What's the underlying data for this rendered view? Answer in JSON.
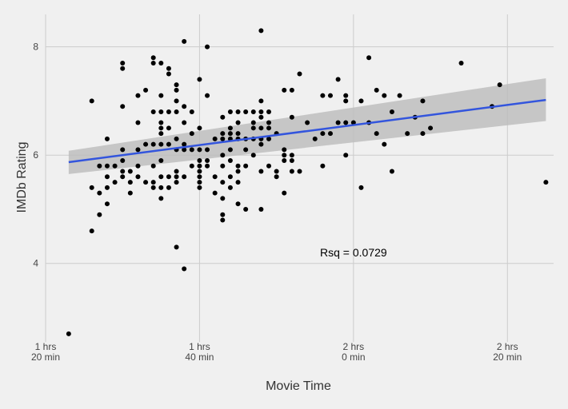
{
  "chart_data": {
    "type": "scatter",
    "title": "",
    "xlabel": "Movie Time",
    "ylabel": "IMDb Rating",
    "xlim": [
      80,
      146
    ],
    "ylim": [
      2.55,
      8.6
    ],
    "grid": true,
    "x_ticks": [
      {
        "value": 80,
        "line1": "1 hrs",
        "line2": "20 min"
      },
      {
        "value": 100,
        "line1": "1 hrs",
        "line2": "40 min"
      },
      {
        "value": 120,
        "line1": "2 hrs",
        "line2": "0 min"
      },
      {
        "value": 140,
        "line1": "2 hrs",
        "line2": "20 min"
      }
    ],
    "y_ticks": [
      {
        "value": 4,
        "label": "4"
      },
      {
        "value": 6,
        "label": "6"
      },
      {
        "value": 8,
        "label": "8"
      }
    ],
    "trend": {
      "x_start": 83,
      "x_end": 145,
      "y_start": 5.87,
      "y_end": 7.02
    },
    "confidence_band": {
      "upper_start": 6.08,
      "upper_end": 7.42,
      "lower_start": 5.65,
      "lower_end": 6.63
    },
    "annotation": {
      "text": "Rsq = 0.0729",
      "x": 120,
      "y": 4.2
    },
    "colors": {
      "point": "#000000",
      "trend": "#3355dd",
      "band": "#bbbbbb",
      "grid": "#cccccc",
      "background": "#f0f0f0"
    },
    "points": [
      [
        83,
        2.7
      ],
      [
        86,
        4.6
      ],
      [
        86,
        7.0
      ],
      [
        86,
        5.4
      ],
      [
        87,
        5.8
      ],
      [
        87,
        5.3
      ],
      [
        87,
        4.9
      ],
      [
        88,
        5.8
      ],
      [
        88,
        5.6
      ],
      [
        88,
        5.1
      ],
      [
        88,
        6.3
      ],
      [
        88,
        5.4
      ],
      [
        89,
        5.8
      ],
      [
        89,
        5.5
      ],
      [
        90,
        7.7
      ],
      [
        90,
        7.6
      ],
      [
        90,
        6.9
      ],
      [
        90,
        6.1
      ],
      [
        90,
        5.9
      ],
      [
        90,
        5.7
      ],
      [
        90,
        5.6
      ],
      [
        91,
        5.7
      ],
      [
        91,
        5.5
      ],
      [
        91,
        5.3
      ],
      [
        92,
        7.1
      ],
      [
        92,
        6.6
      ],
      [
        92,
        6.1
      ],
      [
        92,
        5.8
      ],
      [
        92,
        5.6
      ],
      [
        93,
        7.2
      ],
      [
        93,
        6.2
      ],
      [
        93,
        5.5
      ],
      [
        94,
        7.8
      ],
      [
        94,
        7.7
      ],
      [
        94,
        6.8
      ],
      [
        94,
        6.2
      ],
      [
        94,
        5.8
      ],
      [
        94,
        5.5
      ],
      [
        94,
        5.4
      ],
      [
        95,
        7.7
      ],
      [
        95,
        7.1
      ],
      [
        95,
        6.8
      ],
      [
        95,
        6.6
      ],
      [
        95,
        6.5
      ],
      [
        95,
        6.4
      ],
      [
        95,
        6.2
      ],
      [
        95,
        5.9
      ],
      [
        95,
        5.6
      ],
      [
        95,
        5.4
      ],
      [
        95,
        5.2
      ],
      [
        96,
        7.6
      ],
      [
        96,
        7.5
      ],
      [
        96,
        6.8
      ],
      [
        96,
        6.5
      ],
      [
        96,
        6.2
      ],
      [
        96,
        5.6
      ],
      [
        96,
        5.4
      ],
      [
        97,
        7.3
      ],
      [
        97,
        7.2
      ],
      [
        97,
        7.0
      ],
      [
        97,
        6.8
      ],
      [
        97,
        6.3
      ],
      [
        97,
        6.1
      ],
      [
        97,
        5.7
      ],
      [
        97,
        5.6
      ],
      [
        97,
        5.5
      ],
      [
        97,
        4.3
      ],
      [
        98,
        8.1
      ],
      [
        98,
        6.9
      ],
      [
        98,
        6.6
      ],
      [
        98,
        6.2
      ],
      [
        98,
        6.1
      ],
      [
        98,
        5.6
      ],
      [
        98,
        3.9
      ],
      [
        99,
        6.8
      ],
      [
        99,
        6.4
      ],
      [
        99,
        6.1
      ],
      [
        99,
        5.8
      ],
      [
        100,
        7.4
      ],
      [
        100,
        6.5
      ],
      [
        100,
        6.1
      ],
      [
        100,
        5.9
      ],
      [
        100,
        5.8
      ],
      [
        100,
        5.7
      ],
      [
        100,
        5.6
      ],
      [
        100,
        5.5
      ],
      [
        100,
        5.4
      ],
      [
        101,
        8.0
      ],
      [
        101,
        7.1
      ],
      [
        101,
        6.1
      ],
      [
        101,
        5.9
      ],
      [
        101,
        5.8
      ],
      [
        102,
        6.3
      ],
      [
        102,
        5.6
      ],
      [
        102,
        5.3
      ],
      [
        103,
        6.7
      ],
      [
        103,
        6.4
      ],
      [
        103,
        6.3
      ],
      [
        103,
        6.0
      ],
      [
        103,
        5.8
      ],
      [
        103,
        5.5
      ],
      [
        103,
        5.2
      ],
      [
        103,
        4.9
      ],
      [
        103,
        4.8
      ],
      [
        104,
        6.8
      ],
      [
        104,
        6.5
      ],
      [
        104,
        6.4
      ],
      [
        104,
        6.3
      ],
      [
        104,
        6.1
      ],
      [
        104,
        5.9
      ],
      [
        104,
        5.6
      ],
      [
        104,
        5.4
      ],
      [
        105,
        6.8
      ],
      [
        105,
        6.6
      ],
      [
        105,
        6.4
      ],
      [
        105,
        6.3
      ],
      [
        105,
        5.8
      ],
      [
        105,
        5.7
      ],
      [
        105,
        5.5
      ],
      [
        105,
        5.1
      ],
      [
        106,
        6.8
      ],
      [
        106,
        6.3
      ],
      [
        106,
        6.1
      ],
      [
        106,
        5.8
      ],
      [
        106,
        5.0
      ],
      [
        107,
        6.8
      ],
      [
        107,
        6.6
      ],
      [
        107,
        6.5
      ],
      [
        107,
        6.3
      ],
      [
        107,
        6.0
      ],
      [
        108,
        8.3
      ],
      [
        108,
        7.0
      ],
      [
        108,
        6.8
      ],
      [
        108,
        6.7
      ],
      [
        108,
        6.5
      ],
      [
        108,
        6.3
      ],
      [
        108,
        6.2
      ],
      [
        108,
        5.7
      ],
      [
        108,
        5.0
      ],
      [
        109,
        6.8
      ],
      [
        109,
        6.6
      ],
      [
        109,
        6.5
      ],
      [
        109,
        6.3
      ],
      [
        109,
        5.8
      ],
      [
        110,
        6.4
      ],
      [
        110,
        5.7
      ],
      [
        110,
        5.6
      ],
      [
        111,
        7.2
      ],
      [
        111,
        6.1
      ],
      [
        111,
        6.0
      ],
      [
        111,
        5.9
      ],
      [
        111,
        5.3
      ],
      [
        112,
        7.2
      ],
      [
        112,
        6.7
      ],
      [
        112,
        6.0
      ],
      [
        112,
        5.9
      ],
      [
        112,
        5.7
      ],
      [
        113,
        7.5
      ],
      [
        113,
        5.7
      ],
      [
        114,
        6.6
      ],
      [
        115,
        6.3
      ],
      [
        116,
        7.1
      ],
      [
        116,
        6.4
      ],
      [
        116,
        5.8
      ],
      [
        117,
        7.1
      ],
      [
        117,
        6.4
      ],
      [
        118,
        7.4
      ],
      [
        118,
        6.6
      ],
      [
        119,
        7.1
      ],
      [
        119,
        7.0
      ],
      [
        119,
        6.6
      ],
      [
        119,
        6.0
      ],
      [
        120,
        6.6
      ],
      [
        121,
        7.0
      ],
      [
        121,
        5.4
      ],
      [
        122,
        7.8
      ],
      [
        122,
        6.6
      ],
      [
        123,
        7.2
      ],
      [
        123,
        6.4
      ],
      [
        124,
        7.1
      ],
      [
        124,
        6.2
      ],
      [
        125,
        6.8
      ],
      [
        125,
        5.7
      ],
      [
        126,
        7.1
      ],
      [
        127,
        6.4
      ],
      [
        128,
        6.7
      ],
      [
        129,
        7.0
      ],
      [
        129,
        6.4
      ],
      [
        130,
        6.5
      ],
      [
        134,
        7.7
      ],
      [
        138,
        6.9
      ],
      [
        139,
        7.3
      ],
      [
        145,
        5.5
      ]
    ]
  }
}
